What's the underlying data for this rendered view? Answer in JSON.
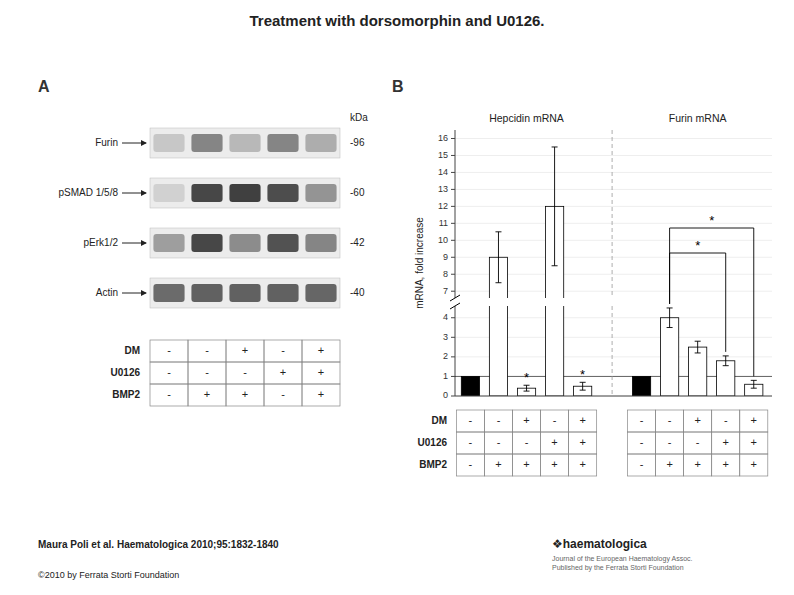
{
  "chart_data": [
    {
      "type": "heatmap",
      "title": "Treatment with dorsomorphin and U0126.",
      "annotations": [
        "A"
      ],
      "rows": [
        "Furin",
        "pSMAD 1/5/8",
        "pErk1/2",
        "Actin"
      ],
      "row_annotations_title": "kDa",
      "row_annotations": [
        "-96",
        "-60",
        "-42",
        "-40"
      ],
      "cells": [
        [
          0.78,
          0.52,
          0.72,
          0.52,
          0.68
        ],
        [
          0.82,
          0.28,
          0.25,
          0.3,
          0.58
        ],
        [
          0.62,
          0.28,
          0.55,
          0.32,
          0.52
        ],
        [
          0.42,
          0.38,
          0.38,
          0.38,
          0.4
        ]
      ],
      "table": {
        "rows": [
          "DM",
          "U0126",
          "BMP2"
        ],
        "cells": [
          [
            "-",
            "-",
            "+",
            "-",
            "+"
          ],
          [
            "-",
            "-",
            "-",
            "+",
            "+"
          ],
          [
            "-",
            "+",
            "+",
            "-",
            "+"
          ]
        ]
      },
      "caption": "Maura Poli et al. Haematologica 2010;95:1832-1840",
      "footer": [
        "©2010 by Ferrata Storti Foundation"
      ],
      "source": [
        "❖haematologica",
        "Journal of the European Haematology Assoc.",
        "Published by the Ferrata Storti Foundation"
      ]
    },
    {
      "type": "bar",
      "annotations": [
        "B"
      ],
      "ylabel": "mRNA, fold increase",
      "categories": [
        null,
        null,
        null,
        null,
        null
      ],
      "series": [
        {
          "name": "Hepcidin mRNA",
          "values": [
            1.0,
            9.0,
            0.4,
            12.0,
            0.5
          ],
          "errors": [
            0.0,
            1.5,
            0.15,
            3.5,
            0.2
          ],
          "colors": [
            "black",
            "white",
            "white",
            "white",
            "white"
          ],
          "annotations": [
            {
              "text": "*",
              "index": 2
            },
            {
              "text": "*",
              "index": 4
            }
          ]
        },
        {
          "name": "Furin mRNA",
          "values": [
            1.0,
            4.0,
            2.5,
            1.8,
            0.6
          ],
          "errors": [
            0.0,
            0.5,
            0.3,
            0.25,
            0.2
          ],
          "colors": [
            "black",
            "white",
            "white",
            "white",
            "white"
          ],
          "annotations": [
            {
              "text": "*",
              "from": 1,
              "to": 3
            },
            {
              "text": "*",
              "from": 1,
              "to": 4
            }
          ]
        }
      ],
      "ylim": [
        [
          0,
          4.6
        ],
        [
          6.6,
          16.5
        ]
      ],
      "yticks": [
        [
          0,
          1,
          2,
          3,
          4
        ],
        [
          7,
          8,
          9,
          10,
          11,
          12,
          13,
          14,
          15,
          16
        ]
      ],
      "reference_line": 1,
      "table": {
        "rows": [
          "DM",
          "U0126",
          "BMP2"
        ],
        "cells": [
          [
            "-",
            "-",
            "+",
            "-",
            "+",
            "-",
            "-",
            "+",
            "-",
            "+"
          ],
          [
            "-",
            "-",
            "-",
            "+",
            "+",
            "-",
            "-",
            "-",
            "+",
            "+"
          ],
          [
            "-",
            "+",
            "+",
            "+",
            "+",
            "-",
            "+",
            "+",
            "+",
            "+"
          ]
        ]
      }
    }
  ]
}
